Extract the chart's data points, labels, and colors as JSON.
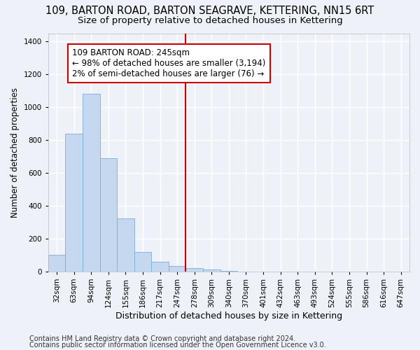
{
  "title": "109, BARTON ROAD, BARTON SEAGRAVE, KETTERING, NN15 6RT",
  "subtitle": "Size of property relative to detached houses in Kettering",
  "xlabel": "Distribution of detached houses by size in Kettering",
  "ylabel": "Number of detached properties",
  "footer_line1": "Contains HM Land Registry data © Crown copyright and database right 2024.",
  "footer_line2": "Contains public sector information licensed under the Open Government Licence v3.0.",
  "bin_labels": [
    "32sqm",
    "63sqm",
    "94sqm",
    "124sqm",
    "155sqm",
    "186sqm",
    "217sqm",
    "247sqm",
    "278sqm",
    "309sqm",
    "340sqm",
    "370sqm",
    "401sqm",
    "432sqm",
    "463sqm",
    "493sqm",
    "524sqm",
    "555sqm",
    "586sqm",
    "616sqm",
    "647sqm"
  ],
  "bar_heights": [
    100,
    840,
    1080,
    690,
    325,
    120,
    60,
    35,
    20,
    10,
    5,
    0,
    0,
    0,
    0,
    0,
    0,
    0,
    0,
    0,
    0
  ],
  "bar_color": "#c5d8f0",
  "bar_edge_color": "#7aaed6",
  "vline_x": 7.5,
  "vline_color": "#cc0000",
  "annotation_text": "109 BARTON ROAD: 245sqm\n← 98% of detached houses are smaller (3,194)\n2% of semi-detached houses are larger (76) →",
  "annotation_box_color": "#ffffff",
  "annotation_box_edge": "#cc0000",
  "ylim": [
    0,
    1450
  ],
  "yticks": [
    0,
    200,
    400,
    600,
    800,
    1000,
    1200,
    1400
  ],
  "background_color": "#eef2f8",
  "grid_color": "#ffffff",
  "title_fontsize": 10.5,
  "subtitle_fontsize": 9.5,
  "xlabel_fontsize": 9,
  "ylabel_fontsize": 8.5,
  "tick_fontsize": 7.5,
  "annotation_fontsize": 8.5,
  "footer_fontsize": 7
}
